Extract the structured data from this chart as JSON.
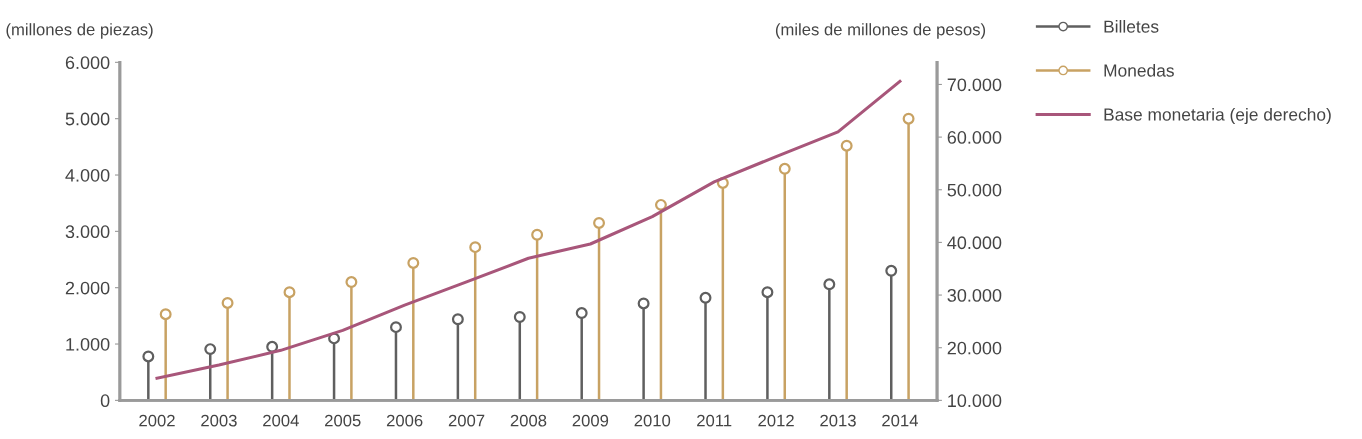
{
  "chart_data": {
    "type": "lollipop",
    "categories": [
      "2002",
      "2003",
      "2004",
      "2005",
      "2006",
      "2007",
      "2008",
      "2009",
      "2010",
      "2011",
      "2012",
      "2013",
      "2014"
    ],
    "series": [
      {
        "name": "Billetes",
        "color": "#5f5f5f",
        "values": [
          780,
          910,
          950,
          1100,
          1300,
          1440,
          1480,
          1550,
          1720,
          1820,
          1920,
          2060,
          2300
        ]
      },
      {
        "name": "Monedas",
        "color": "#c8a263",
        "values": [
          1530,
          1730,
          1920,
          2100,
          2440,
          2720,
          2940,
          3150,
          3470,
          3860,
          4110,
          4520,
          5000
        ]
      },
      {
        "name": "Base monetaria (eje derecho)",
        "color": "#a8567a",
        "type": "line",
        "axis": "y2",
        "marker": "none",
        "values": [
          14200,
          16700,
          19500,
          23300,
          28100,
          32500,
          37000,
          39700,
          44900,
          51500,
          56300,
          61000,
          70600
        ]
      }
    ],
    "ylabel": "(millones de piezas)",
    "y2label": "(miles de millones de pesos)",
    "ylim": [
      0,
      6000
    ],
    "yticks": [
      {
        "value": 0,
        "label": "0"
      },
      {
        "value": 1000,
        "label": "1.000"
      },
      {
        "value": 2000,
        "label": "2.000"
      },
      {
        "value": 3000,
        "label": "3.000"
      },
      {
        "value": 4000,
        "label": "4.000"
      },
      {
        "value": 5000,
        "label": "5.000"
      },
      {
        "value": 6000,
        "label": "6.000"
      }
    ],
    "y2lim": [
      10000,
      74200
    ],
    "y2ticks": [
      {
        "value": 10000,
        "label": "10.000"
      },
      {
        "value": 20000,
        "label": "20.000"
      },
      {
        "value": 30000,
        "label": "30.000"
      },
      {
        "value": 40000,
        "label": "40.000"
      },
      {
        "value": 50000,
        "label": "50.000"
      },
      {
        "value": 60000,
        "label": "60.000"
      },
      {
        "value": 70000,
        "label": "70.000"
      }
    ],
    "marker": "circle",
    "line_style": "solid",
    "legend": "right",
    "grid": false
  }
}
